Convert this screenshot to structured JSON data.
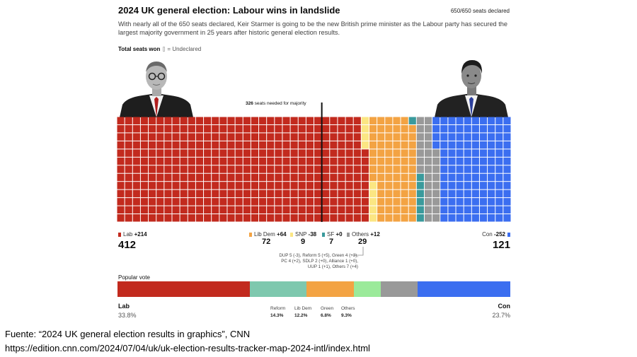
{
  "header": {
    "title": "2024 UK general election: Labour wins in landslide",
    "declared": "650/650 seats declared",
    "description": "With nearly all of the 650 seats declared, Keir Starmer is going to be the new British prime minister as the Labour party has secured the largest majority government in 25 years after historic general election results."
  },
  "legend": {
    "title": "Total seats won",
    "undeclared": "= Undeclared"
  },
  "majority": {
    "seats_bold": "326",
    "label": " seats needed for majority",
    "value": 326
  },
  "parties": {
    "lab": {
      "name": "Lab",
      "change": "+214",
      "seats": "412",
      "color": "#c22a1e"
    },
    "libdem": {
      "name": "Lib Dem",
      "change": "+64",
      "seats": "72",
      "color": "#f3a343"
    },
    "snp": {
      "name": "SNP",
      "change": "-38",
      "seats": "9",
      "color": "#fbe683"
    },
    "sf": {
      "name": "SF",
      "change": "+0",
      "seats": "7",
      "color": "#3a9a9c"
    },
    "others": {
      "name": "Others",
      "change": "+12",
      "seats": "29",
      "color": "#999999"
    },
    "con": {
      "name": "Con",
      "change": "-252",
      "seats": "121",
      "color": "#3b6ef0"
    }
  },
  "others_breakdown": {
    "line1": "DUP 5 (-3), Reform 5 (+5), Green 4 (+3),",
    "line2": "PC 4 (+2), SDLP 2 (+0), Alliance 1 (+0),",
    "line3": "UUP 1 (+1), Others 7 (+4)"
  },
  "popular_vote": {
    "title": "Popular vote",
    "lab": {
      "name": "Lab",
      "pct": "33.8%"
    },
    "reform": {
      "name": "Reform",
      "pct": "14.3%"
    },
    "libdem": {
      "name": "Lib Dem",
      "pct": "12.2%"
    },
    "green": {
      "name": "Green",
      "pct": "6.8%"
    },
    "others": {
      "name": "Others",
      "pct": "9.3%"
    },
    "con": {
      "name": "Con",
      "pct": "23.7%"
    }
  },
  "source": {
    "line1": "Fuente: “2024 UK general election results in graphics”, CNN",
    "line2": "https://edition.cnn.com/2024/07/04/uk/uk-election-results-tracker-map-2024-intl/index.html"
  },
  "chart_data": [
    {
      "type": "waffle",
      "title": "Total seats won",
      "total": 650,
      "categories": [
        "Lab",
        "SNP",
        "Lib Dem",
        "SF",
        "Others",
        "Con"
      ],
      "values": [
        412,
        9,
        72,
        7,
        29,
        121
      ],
      "colors": [
        "#c22a1e",
        "#fbe683",
        "#f3a343",
        "#3a9a9c",
        "#999999",
        "#3b6ef0"
      ],
      "majority_line": 326
    },
    {
      "type": "stacked-bar",
      "title": "Popular vote",
      "categories": [
        "Lab",
        "Reform",
        "Lib Dem",
        "Green",
        "Others",
        "Con"
      ],
      "values": [
        33.8,
        14.3,
        12.2,
        6.8,
        9.3,
        23.7
      ],
      "colors": [
        "#c22a1e",
        "#7ec8ae",
        "#f3a343",
        "#9bea9a",
        "#999999",
        "#3b6ef0"
      ]
    }
  ]
}
